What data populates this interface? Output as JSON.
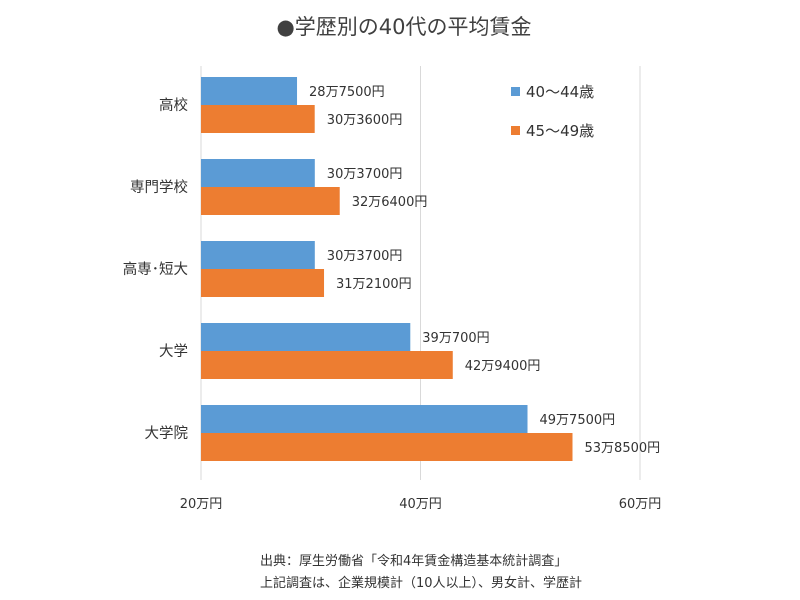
{
  "chart_data": {
    "type": "bar",
    "orientation": "horizontal",
    "title": "●学歴別の40代の平均賃金",
    "categories": [
      "高校",
      "専門学校",
      "高専･短大",
      "大学",
      "大学院"
    ],
    "series": [
      {
        "name": "40～44歳",
        "color": "#5b9bd5",
        "values": [
          28.75,
          30.37,
          30.37,
          39.07,
          49.75
        ],
        "labels": [
          "28万7500円",
          "30万3700円",
          "30万3700円",
          "39万700円",
          "49万7500円"
        ]
      },
      {
        "name": "45～49歳",
        "color": "#ed7d31",
        "values": [
          30.36,
          32.64,
          31.21,
          42.94,
          53.85
        ],
        "labels": [
          "30万3600円",
          "32万6400円",
          "31万2100円",
          "42万9400円",
          "53万8500円"
        ]
      }
    ],
    "xlim": [
      20,
      60
    ],
    "xticks": [
      20,
      40,
      60
    ],
    "xtick_labels": [
      "20万円",
      "40万円",
      "60万円"
    ],
    "xlabel": "",
    "ylabel": "",
    "grid": true,
    "legend_position": "top-right",
    "gridline_color": "#d9d9d9"
  },
  "notes": [
    "出典：厚生労働省「令和4年賃金構造基本統計調査」",
    "上記調査は、企業規模計（10人以上）、男女計、学歴計"
  ]
}
